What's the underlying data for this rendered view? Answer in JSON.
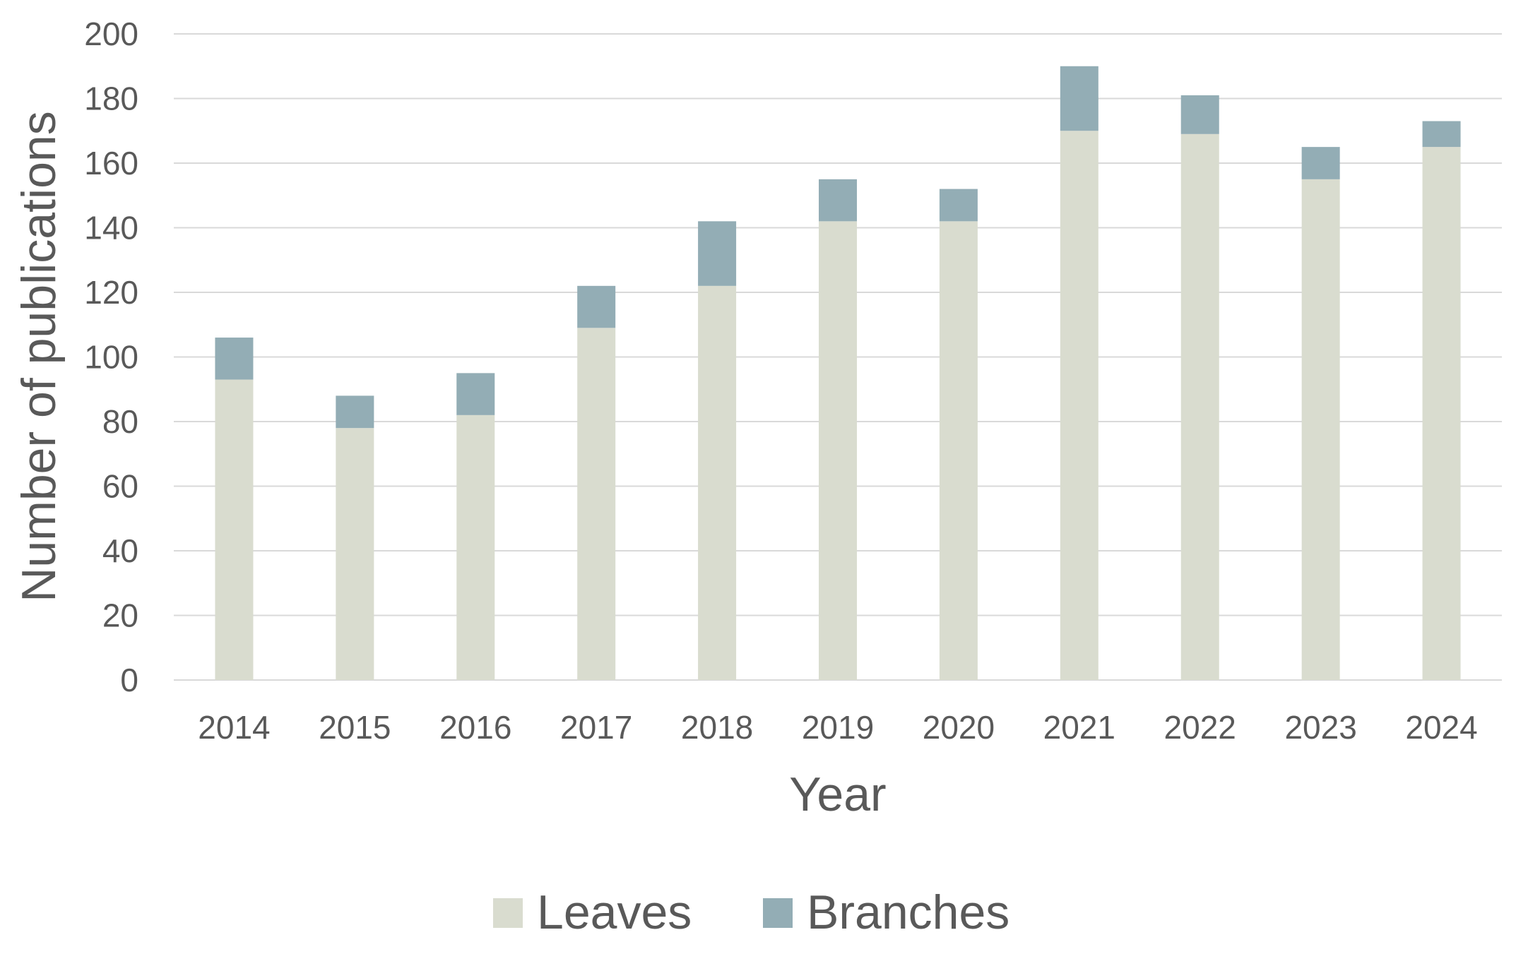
{
  "chart_data": {
    "type": "bar",
    "stacked": true,
    "categories": [
      "2014",
      "2015",
      "2016",
      "2017",
      "2018",
      "2019",
      "2020",
      "2021",
      "2022",
      "2023",
      "2024"
    ],
    "series": [
      {
        "name": "Leaves",
        "color": "#d9dccf",
        "values": [
          93,
          78,
          82,
          109,
          122,
          142,
          142,
          170,
          169,
          155,
          165
        ]
      },
      {
        "name": "Branches",
        "color": "#93adb5",
        "values": [
          13,
          10,
          13,
          13,
          20,
          13,
          10,
          20,
          12,
          10,
          8
        ]
      }
    ],
    "xlabel": "Year",
    "ylabel": "Number of publications",
    "ylim": [
      0,
      200
    ],
    "yticks": [
      "0",
      "20",
      "40",
      "60",
      "80",
      "100",
      "120",
      "140",
      "160",
      "180",
      "200"
    ],
    "grid": true,
    "gridline_color": "#d9d9d9",
    "legend_position": "bottom-center"
  }
}
